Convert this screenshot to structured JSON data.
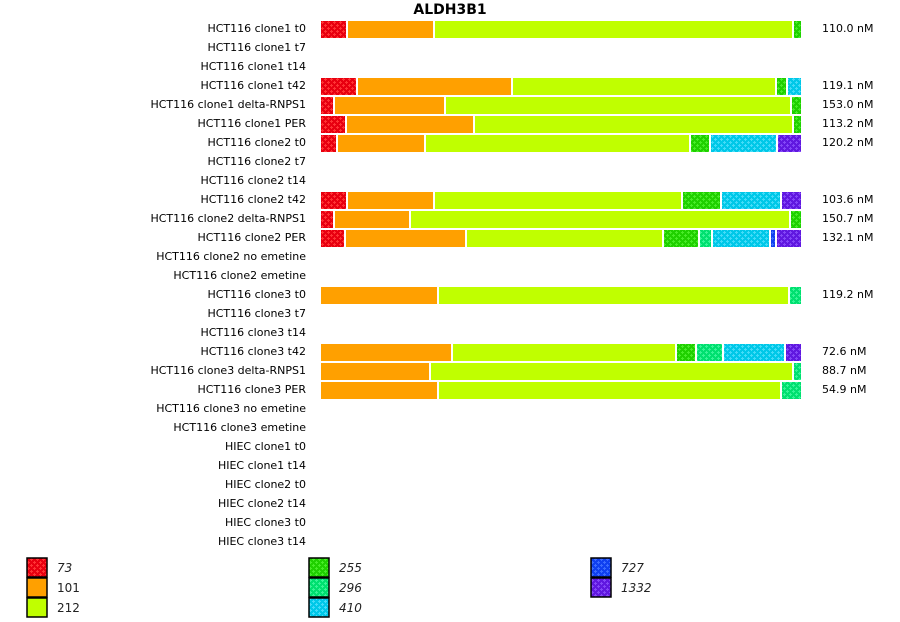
{
  "chart_data": {
    "type": "bar",
    "orientation": "horizontal",
    "stacked": true,
    "normalized": true,
    "title": "ALDH3B1",
    "xlabel": "",
    "ylabel": "",
    "value_unit": "percent of total expression",
    "legend_placement": "bottom",
    "isoforms": [
      {
        "name": "73",
        "color": "#E80010",
        "dot": "#FF3434",
        "patterned": true
      },
      {
        "name": "101",
        "color": "#FFA000",
        "dot": "#FFA000",
        "patterned": false
      },
      {
        "name": "212",
        "color": "#C0FF00",
        "dot": "#C0FF00",
        "patterned": false
      },
      {
        "name": "255",
        "color": "#20D000",
        "dot": "#48EC28",
        "patterned": true
      },
      {
        "name": "296",
        "color": "#00E070",
        "dot": "#38F498",
        "patterned": true
      },
      {
        "name": "410",
        "color": "#00C8E8",
        "dot": "#44DCF8",
        "patterned": true
      },
      {
        "name": "727",
        "color": "#1040F0",
        "dot": "#3C6CFF",
        "patterned": true
      },
      {
        "name": "1332",
        "color": "#6018E0",
        "dot": "#8448F8",
        "patterned": true
      }
    ],
    "rows": [
      {
        "label": "HCT116 clone1 t0",
        "total": "110.0 nM",
        "segments": [
          {
            "isoform": "73",
            "percent": 5.6
          },
          {
            "isoform": "101",
            "percent": 18.1
          },
          {
            "isoform": "212",
            "percent": 74.6
          },
          {
            "isoform": "255",
            "percent": 1.7
          }
        ]
      },
      {
        "label": "HCT116 clone1 t7",
        "total": "",
        "segments": []
      },
      {
        "label": "HCT116 clone1 t14",
        "total": "",
        "segments": []
      },
      {
        "label": "HCT116 clone1 t42",
        "total": "119.1 nM",
        "segments": [
          {
            "isoform": "73",
            "percent": 7.7
          },
          {
            "isoform": "101",
            "percent": 32.2
          },
          {
            "isoform": "212",
            "percent": 54.9
          },
          {
            "isoform": "255",
            "percent": 2.3
          },
          {
            "isoform": "410",
            "percent": 2.9
          }
        ]
      },
      {
        "label": "HCT116 clone1 delta-RNPS1",
        "total": "153.0 nM",
        "segments": [
          {
            "isoform": "73",
            "percent": 2.9
          },
          {
            "isoform": "101",
            "percent": 23.1
          },
          {
            "isoform": "212",
            "percent": 71.9
          },
          {
            "isoform": "255",
            "percent": 2.1
          }
        ]
      },
      {
        "label": "HCT116 clone1 PER",
        "total": "113.2 nM",
        "segments": [
          {
            "isoform": "73",
            "percent": 5.4
          },
          {
            "isoform": "101",
            "percent": 26.6
          },
          {
            "isoform": "212",
            "percent": 66.3
          },
          {
            "isoform": "255",
            "percent": 1.7
          }
        ]
      },
      {
        "label": "HCT116 clone2 t0",
        "total": "120.2 nM",
        "segments": [
          {
            "isoform": "73",
            "percent": 3.5
          },
          {
            "isoform": "101",
            "percent": 18.3
          },
          {
            "isoform": "212",
            "percent": 55.1
          },
          {
            "isoform": "255",
            "percent": 4.2
          },
          {
            "isoform": "410",
            "percent": 13.9
          },
          {
            "isoform": "1332",
            "percent": 5.0
          }
        ]
      },
      {
        "label": "HCT116 clone2 t7",
        "total": "",
        "segments": []
      },
      {
        "label": "HCT116 clone2 t14",
        "total": "",
        "segments": []
      },
      {
        "label": "HCT116 clone2 t42",
        "total": "103.6 nM",
        "segments": [
          {
            "isoform": "73",
            "percent": 5.6
          },
          {
            "isoform": "101",
            "percent": 18.1
          },
          {
            "isoform": "212",
            "percent": 51.6
          },
          {
            "isoform": "255",
            "percent": 8.1
          },
          {
            "isoform": "410",
            "percent": 12.5
          },
          {
            "isoform": "1332",
            "percent": 4.2
          }
        ]
      },
      {
        "label": "HCT116 clone2 delta-RNPS1",
        "total": "150.7 nM",
        "segments": [
          {
            "isoform": "73",
            "percent": 2.9
          },
          {
            "isoform": "101",
            "percent": 15.8
          },
          {
            "isoform": "212",
            "percent": 79.0
          },
          {
            "isoform": "255",
            "percent": 2.3
          }
        ]
      },
      {
        "label": "HCT116 clone2 PER",
        "total": "132.1 nM",
        "segments": [
          {
            "isoform": "73",
            "percent": 5.2
          },
          {
            "isoform": "101",
            "percent": 25.2
          },
          {
            "isoform": "212",
            "percent": 41.0
          },
          {
            "isoform": "255",
            "percent": 7.5
          },
          {
            "isoform": "296",
            "percent": 2.7
          },
          {
            "isoform": "410",
            "percent": 12.1
          },
          {
            "isoform": "727",
            "percent": 1.2
          },
          {
            "isoform": "1332",
            "percent": 5.2
          }
        ]
      },
      {
        "label": "HCT116 clone2 no emetine",
        "total": "",
        "segments": []
      },
      {
        "label": "HCT116 clone2 emetine",
        "total": "",
        "segments": []
      },
      {
        "label": "HCT116 clone3 t0",
        "total": "119.2 nM",
        "segments": [
          {
            "isoform": "101",
            "percent": 24.5
          },
          {
            "isoform": "212",
            "percent": 73.0
          },
          {
            "isoform": "296",
            "percent": 2.5
          }
        ]
      },
      {
        "label": "HCT116 clone3 t7",
        "total": "",
        "segments": []
      },
      {
        "label": "HCT116 clone3 t14",
        "total": "",
        "segments": []
      },
      {
        "label": "HCT116 clone3 t42",
        "total": "72.6 nM",
        "segments": [
          {
            "isoform": "101",
            "percent": 27.4
          },
          {
            "isoform": "212",
            "percent": 46.6
          },
          {
            "isoform": "255",
            "percent": 4.2
          },
          {
            "isoform": "296",
            "percent": 5.6
          },
          {
            "isoform": "410",
            "percent": 12.9
          },
          {
            "isoform": "1332",
            "percent": 3.3
          }
        ]
      },
      {
        "label": "HCT116 clone3 delta-RNPS1",
        "total": "88.7 nM",
        "segments": [
          {
            "isoform": "101",
            "percent": 22.9
          },
          {
            "isoform": "212",
            "percent": 75.5
          },
          {
            "isoform": "296",
            "percent": 1.7
          }
        ]
      },
      {
        "label": "HCT116 clone3 PER",
        "total": "54.9 nM",
        "segments": [
          {
            "isoform": "101",
            "percent": 24.5
          },
          {
            "isoform": "212",
            "percent": 71.3
          },
          {
            "isoform": "296",
            "percent": 4.2
          }
        ]
      },
      {
        "label": "HCT116 clone3 no emetine",
        "total": "",
        "segments": []
      },
      {
        "label": "HCT116 clone3 emetine",
        "total": "",
        "segments": []
      },
      {
        "label": "HIEC clone1 t0",
        "total": "",
        "segments": []
      },
      {
        "label": "HIEC clone1 t14",
        "total": "",
        "segments": []
      },
      {
        "label": "HIEC clone2 t0",
        "total": "",
        "segments": []
      },
      {
        "label": "HIEC clone2 t14",
        "total": "",
        "segments": []
      },
      {
        "label": "HIEC clone3 t0",
        "total": "",
        "segments": []
      },
      {
        "label": "HIEC clone3 t14",
        "total": "",
        "segments": []
      }
    ]
  }
}
